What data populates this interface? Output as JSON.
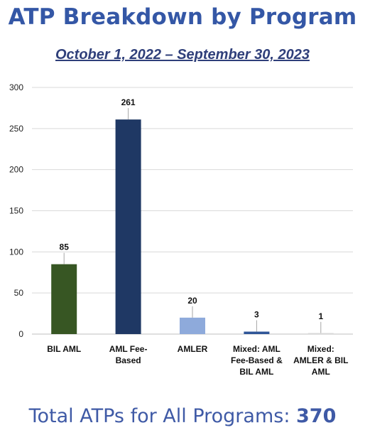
{
  "chart_data": {
    "type": "bar",
    "title": "ATP Breakdown by Program",
    "subtitle": "October 1, 2022 – September 30, 2023",
    "categories": [
      [
        "BIL AML"
      ],
      [
        "AML Fee-",
        "Based"
      ],
      [
        "AMLER"
      ],
      [
        "Mixed: AML",
        "Fee-Based &",
        "BIL AML"
      ],
      [
        "Mixed:",
        "AMLER & BIL",
        "AML"
      ]
    ],
    "values": [
      85,
      261,
      20,
      3,
      1
    ],
    "value_labels": [
      "85",
      "261",
      "20",
      "3",
      "1"
    ],
    "colors": [
      "#375623",
      "#1f3864",
      "#8eaadb",
      "#2f5597",
      "#d9d9d9"
    ],
    "ylim": [
      0,
      300
    ],
    "yticks": [
      0,
      50,
      100,
      150,
      200,
      250,
      300
    ],
    "grid": true,
    "legend": "none"
  },
  "footer": {
    "label": "Total ATPs for All Programs: ",
    "total": "370"
  }
}
